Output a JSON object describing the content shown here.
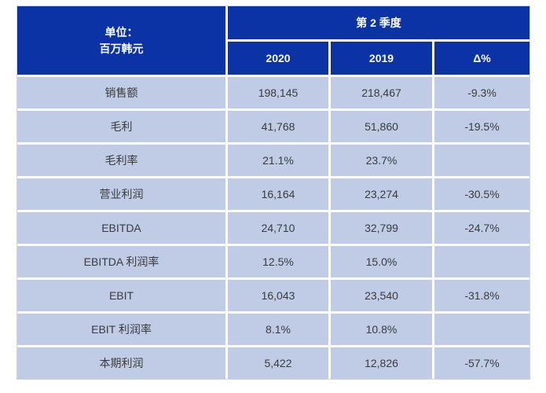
{
  "chart_data": {
    "type": "table",
    "title": "第 2 季度",
    "unit_label": [
      "单位：",
      "百万韩元"
    ],
    "column_headers": [
      "2020",
      "2019",
      "Δ%"
    ],
    "rows": [
      {
        "label": "销售额",
        "q2_2020": "198,145",
        "q2_2019": "218,467",
        "delta_pct": "-9.3%"
      },
      {
        "label": "毛利",
        "q2_2020": "41,768",
        "q2_2019": "51,860",
        "delta_pct": "-19.5%"
      },
      {
        "label": "毛利率",
        "q2_2020": "21.1%",
        "q2_2019": "23.7%",
        "delta_pct": ""
      },
      {
        "label": "营业利润",
        "q2_2020": "16,164",
        "q2_2019": "23,274",
        "delta_pct": "-30.5%"
      },
      {
        "label": "EBITDA",
        "q2_2020": "24,710",
        "q2_2019": "32,799",
        "delta_pct": "-24.7%"
      },
      {
        "label": "EBITDA 利润率",
        "q2_2020": "12.5%",
        "q2_2019": "15.0%",
        "delta_pct": ""
      },
      {
        "label": "EBIT",
        "q2_2020": "16,043",
        "q2_2019": "23,540",
        "delta_pct": "-31.8%"
      },
      {
        "label": "EBIT 利润率",
        "q2_2020": "8.1%",
        "q2_2019": "10.8%",
        "delta_pct": ""
      },
      {
        "label": "本期利润",
        "q2_2020": "5,422",
        "q2_2019": "12,826",
        "delta_pct": "-57.7%"
      }
    ],
    "colors": {
      "header_bg": "#0B33A6",
      "header_text": "#FFFFFF",
      "row_bg": "#C0CCE6",
      "body_text": "#3A3A3A"
    },
    "layout": {
      "grid": "off",
      "legend": "none"
    }
  }
}
